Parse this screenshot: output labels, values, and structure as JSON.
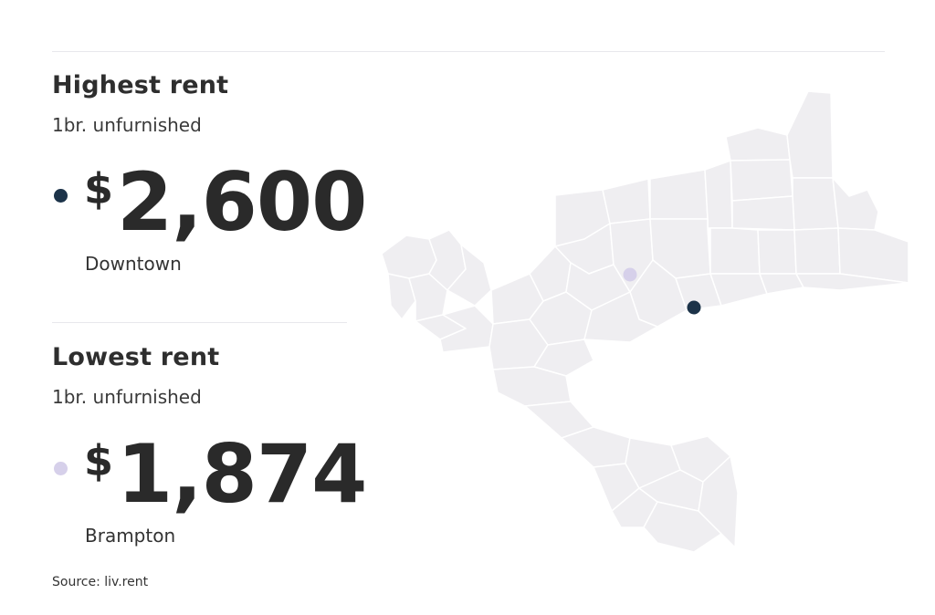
{
  "highest": {
    "title": "Highest rent",
    "subtitle": "1br. unfurnished",
    "currency": "$",
    "amount": "2,600",
    "location": "Downtown",
    "marker_color": "#1c3349"
  },
  "lowest": {
    "title": "Lowest rent",
    "subtitle": "1br. unfurnished",
    "currency": "$",
    "amount": "1,874",
    "location": "Brampton",
    "marker_color": "#d6d0ea"
  },
  "source": "Source: liv.rent",
  "map": {
    "region_color": "#efeef1",
    "border_color": "#ffffff"
  }
}
